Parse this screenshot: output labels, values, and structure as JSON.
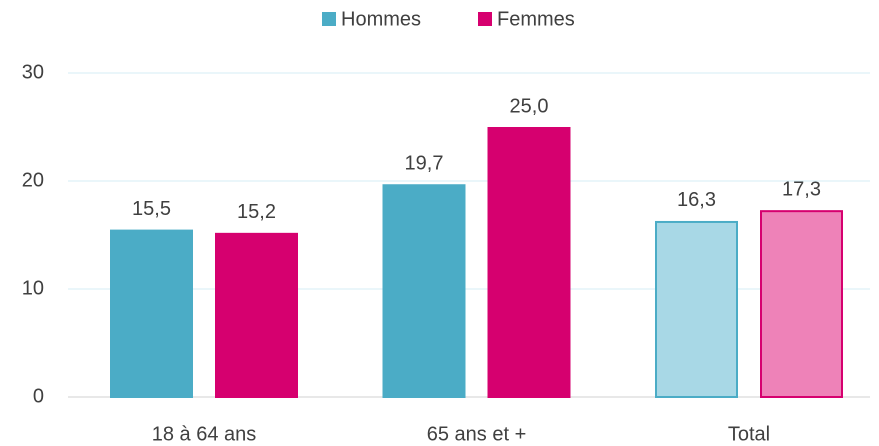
{
  "chart_data": {
    "type": "bar",
    "categories": [
      "18 à 64 ans",
      "65 ans et +",
      "Total"
    ],
    "series": [
      {
        "name": "Hommes",
        "color": "#4bacc6",
        "colors": [
          "#4bacc6",
          "#4bacc6",
          "#a8d8e6"
        ],
        "values": [
          15.5,
          19.7,
          16.3
        ],
        "value_labels": [
          "15,5",
          "19,7",
          "16,3"
        ]
      },
      {
        "name": "Femmes",
        "color": "#d6006f",
        "colors": [
          "#d6006f",
          "#d6006f",
          "#ee82b8"
        ],
        "values": [
          15.2,
          25.0,
          17.3
        ],
        "value_labels": [
          "15,2",
          "25,0",
          "17,3"
        ]
      }
    ],
    "ylim": [
      0,
      30
    ],
    "yticks": [
      0,
      10,
      20,
      30
    ],
    "grid": true,
    "legend": "top"
  }
}
